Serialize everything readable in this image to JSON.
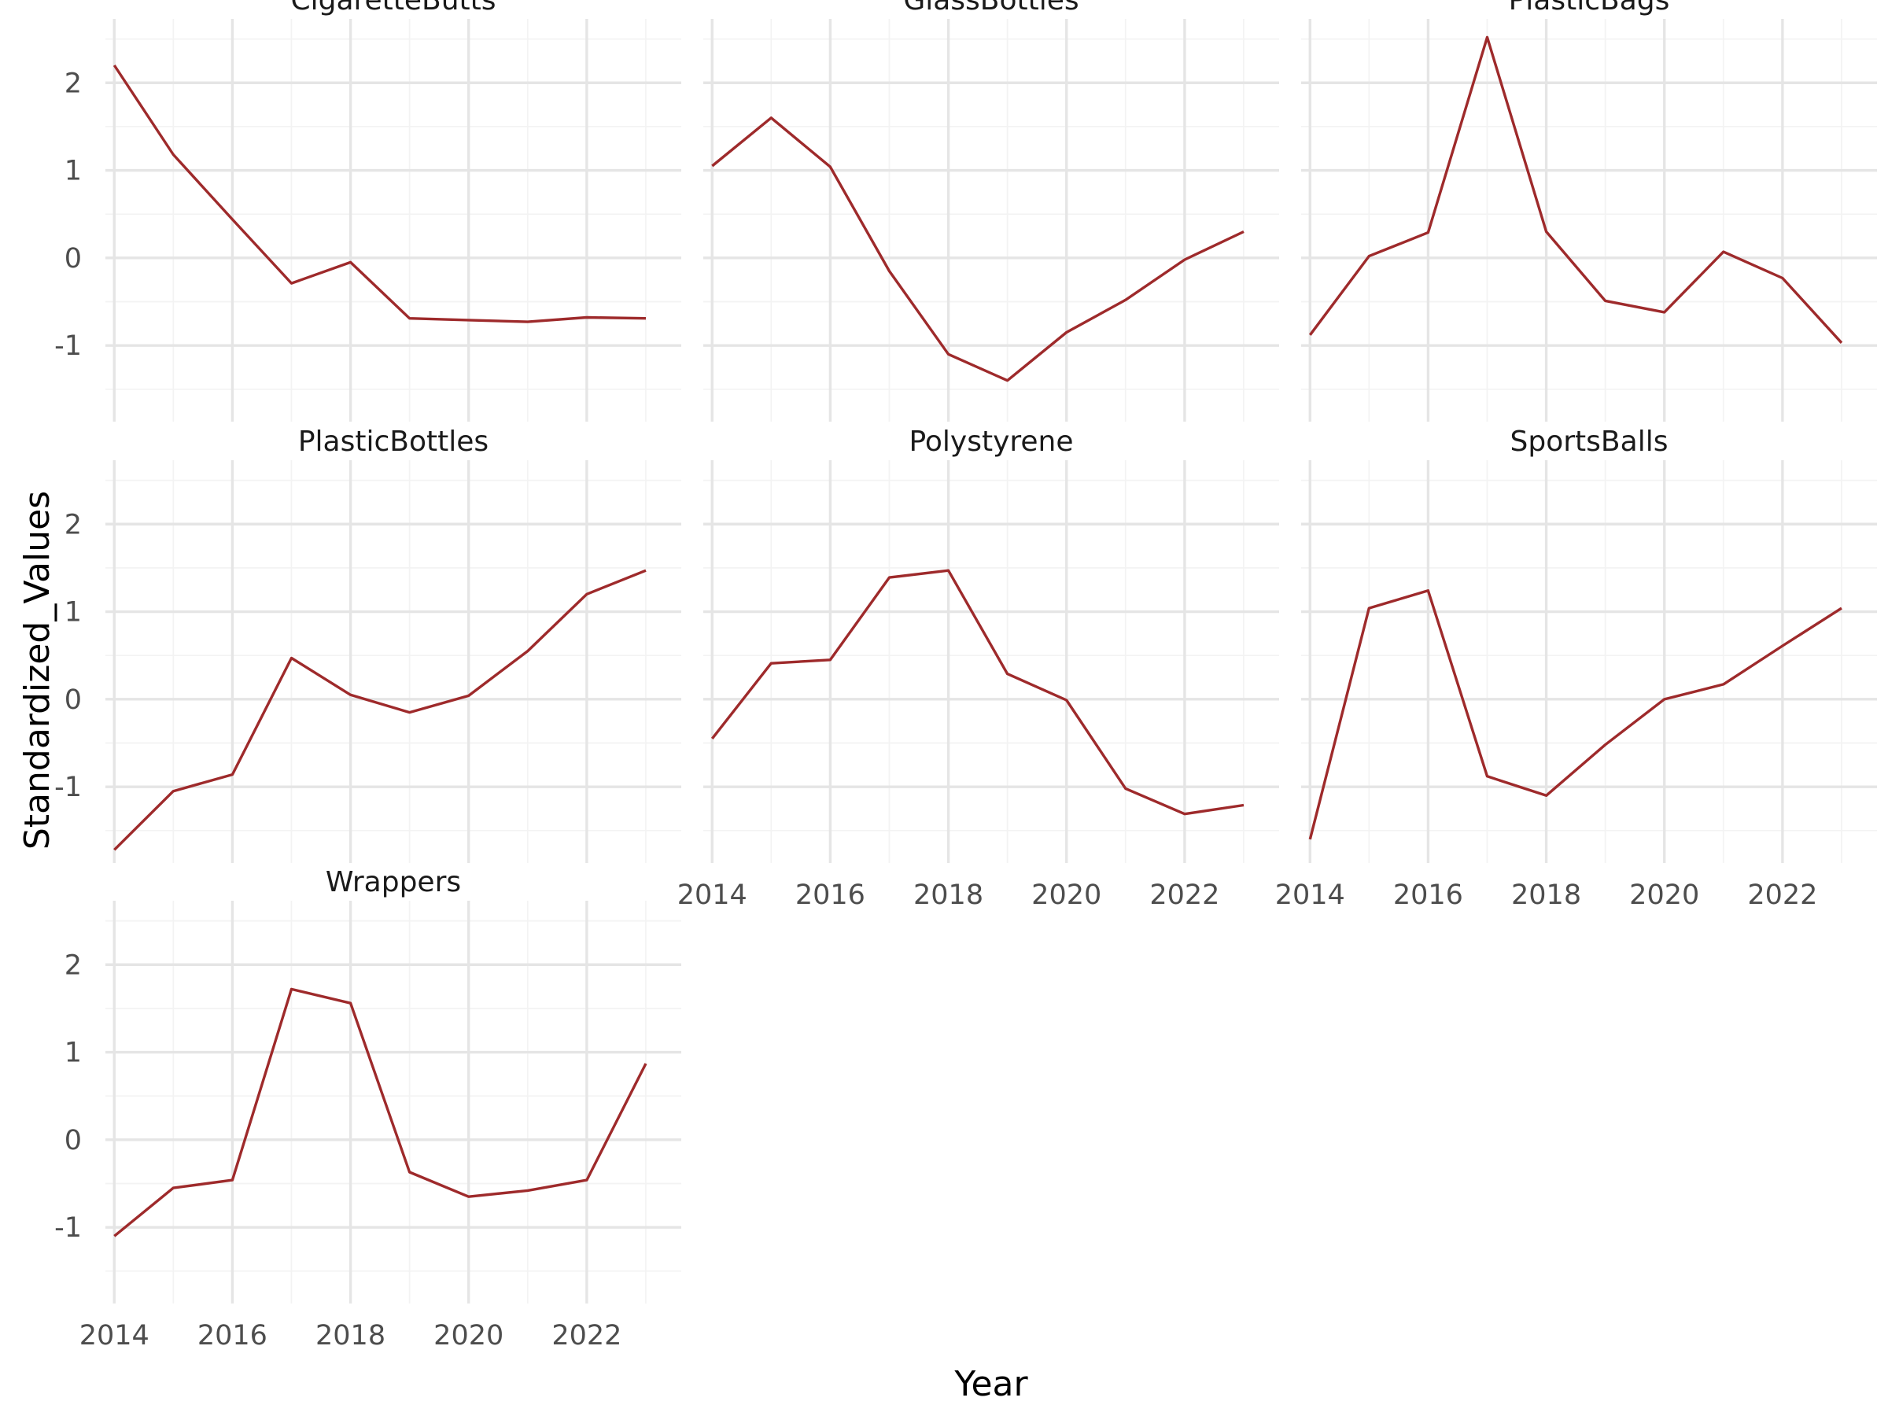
{
  "chart_data": {
    "type": "line",
    "layout": "facet_wrap",
    "xlabel": "Year",
    "ylabel": "Standardized_Values",
    "xlim": [
      2013.85,
      2023.6
    ],
    "ylim": [
      -1.87,
      2.73
    ],
    "x_ticks": [
      2014,
      2016,
      2018,
      2020,
      2022
    ],
    "y_ticks": [
      -1,
      0,
      1,
      2
    ],
    "y_tick_labels": [
      "-1",
      "0",
      "1",
      "2"
    ],
    "grid": true,
    "legend": "none",
    "line_color": "#9e2a2b",
    "x": [
      2014,
      2015,
      2016,
      2017,
      2018,
      2019,
      2020,
      2021,
      2022,
      2023
    ],
    "panels": [
      {
        "name": "CigaretteButts",
        "values": [
          2.2,
          1.18,
          0.44,
          -0.29,
          -0.05,
          -0.69,
          -0.71,
          -0.73,
          -0.68,
          -0.69
        ]
      },
      {
        "name": "GlassBottles",
        "values": [
          1.05,
          1.6,
          1.04,
          -0.15,
          -1.1,
          -1.4,
          -0.85,
          -0.48,
          -0.02,
          0.3
        ]
      },
      {
        "name": "PlasticBags",
        "values": [
          -0.88,
          0.02,
          0.29,
          2.52,
          0.3,
          -0.49,
          -0.62,
          0.07,
          -0.23,
          -0.97
        ]
      },
      {
        "name": "PlasticBottles",
        "values": [
          -1.72,
          -1.05,
          -0.86,
          0.47,
          0.05,
          -0.15,
          0.04,
          0.55,
          1.2,
          1.47
        ]
      },
      {
        "name": "Polystyrene",
        "values": [
          -0.45,
          0.41,
          0.45,
          1.39,
          1.47,
          0.29,
          -0.01,
          -1.02,
          -1.31,
          -1.21
        ]
      },
      {
        "name": "SportsBalls",
        "values": [
          -1.6,
          1.04,
          1.24,
          -0.88,
          -1.1,
          -0.52,
          0.0,
          0.17,
          0.61,
          1.04
        ]
      },
      {
        "name": "Wrappers",
        "values": [
          -1.1,
          -0.55,
          -0.46,
          1.72,
          1.56,
          -0.37,
          -0.65,
          -0.58,
          -0.46,
          0.87
        ]
      }
    ]
  }
}
